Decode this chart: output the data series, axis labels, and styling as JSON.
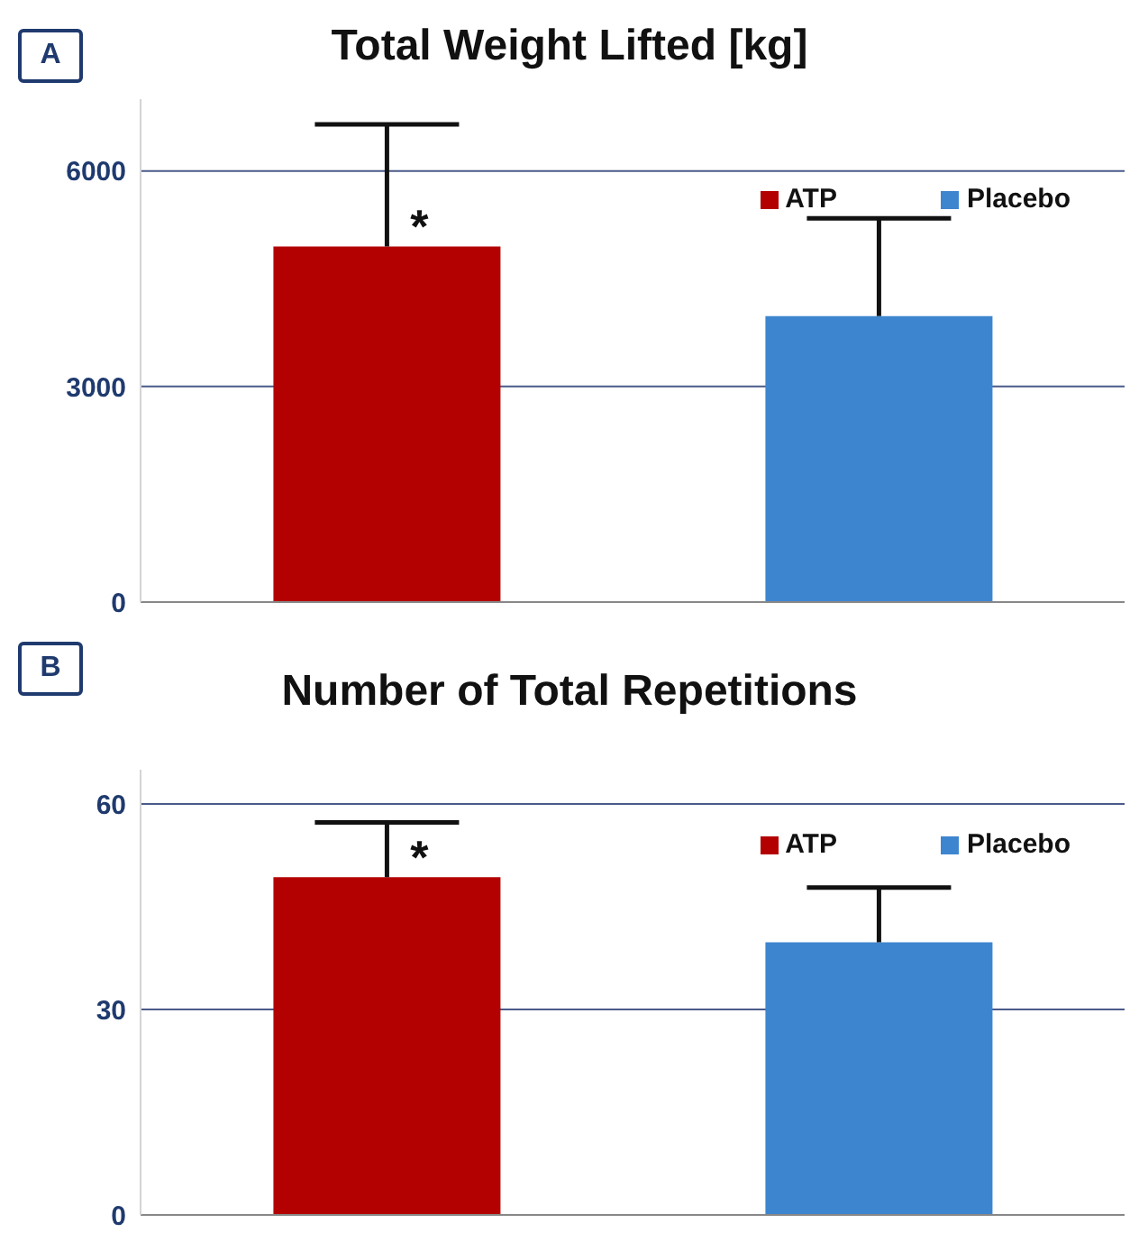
{
  "chart_data": [
    {
      "type": "bar",
      "title": "Total Weight Lifted [kg]",
      "categories": [
        null,
        null
      ],
      "series": [
        {
          "name": "ATP",
          "color": "#b30000",
          "values": [
            4950,
            null
          ],
          "errors": [
            [
              4950,
              6650
            ],
            null
          ]
        },
        {
          "name": "Placebo",
          "color": "#3d85cf",
          "values": [
            null,
            3980
          ],
          "errors": [
            null,
            [
              3980,
              5340
            ]
          ]
        }
      ],
      "ylim": [
        0,
        7000
      ],
      "yticks": [
        0,
        3000,
        6000
      ],
      "grid": "y",
      "legend": "top right",
      "annotations": [
        "A",
        {
          "text": "*",
          "y": 4950
        }
      ]
    },
    {
      "type": "bar",
      "title": "Number of Total Repetitions",
      "categories": [
        null,
        null
      ],
      "series": [
        {
          "name": "ATP",
          "color": "#b30000",
          "values": [
            49.3,
            null
          ],
          "errors": [
            [
              49.3,
              57.3
            ],
            null
          ]
        },
        {
          "name": "Placebo",
          "color": "#3d85cf",
          "values": [
            null,
            39.8
          ],
          "errors": [
            null,
            [
              39.8,
              47.8
            ]
          ]
        }
      ],
      "ylim": [
        0,
        65
      ],
      "yticks": [
        0,
        30,
        60
      ],
      "grid": "y",
      "legend": "top right",
      "annotations": [
        "B",
        {
          "text": "*",
          "y": 49.3
        }
      ]
    }
  ]
}
